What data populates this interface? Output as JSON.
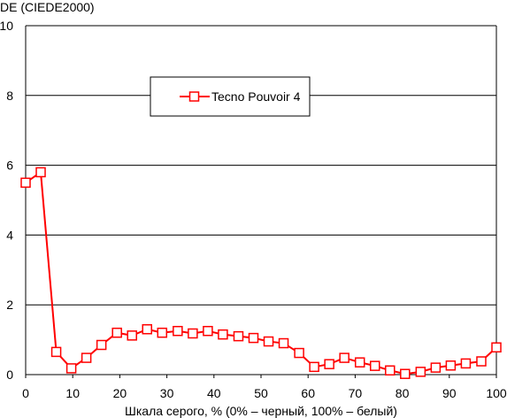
{
  "chart_data": {
    "type": "line",
    "title": "",
    "ylabel": "DE (CIEDE2000)",
    "xlabel": "Шкала серого, % (0% – черный, 100% – белый)",
    "xlim": [
      0,
      100
    ],
    "ylim": [
      0,
      10
    ],
    "x_ticks": [
      0,
      10,
      20,
      30,
      40,
      50,
      60,
      70,
      80,
      90,
      100
    ],
    "y_ticks": [
      0,
      2,
      4,
      6,
      8,
      10
    ],
    "grid": "horizontal",
    "legend_position": "top-center",
    "series": [
      {
        "name": "Tecno Pouvoir 4",
        "color": "#ff0000",
        "marker": "square",
        "x": [
          0,
          3.2,
          6.5,
          9.7,
          12.9,
          16.1,
          19.4,
          22.6,
          25.8,
          29.0,
          32.3,
          35.5,
          38.7,
          41.9,
          45.2,
          48.4,
          51.6,
          54.8,
          58.1,
          61.3,
          64.5,
          67.7,
          71.0,
          74.2,
          77.4,
          80.6,
          83.9,
          87.1,
          90.3,
          93.5,
          96.8,
          100
        ],
        "values": [
          5.5,
          5.8,
          0.65,
          0.18,
          0.48,
          0.85,
          1.2,
          1.12,
          1.3,
          1.2,
          1.25,
          1.18,
          1.25,
          1.15,
          1.1,
          1.05,
          0.95,
          0.9,
          0.62,
          0.22,
          0.3,
          0.48,
          0.35,
          0.25,
          0.12,
          0.02,
          0.08,
          0.2,
          0.26,
          0.32,
          0.38,
          0.78
        ]
      }
    ]
  }
}
